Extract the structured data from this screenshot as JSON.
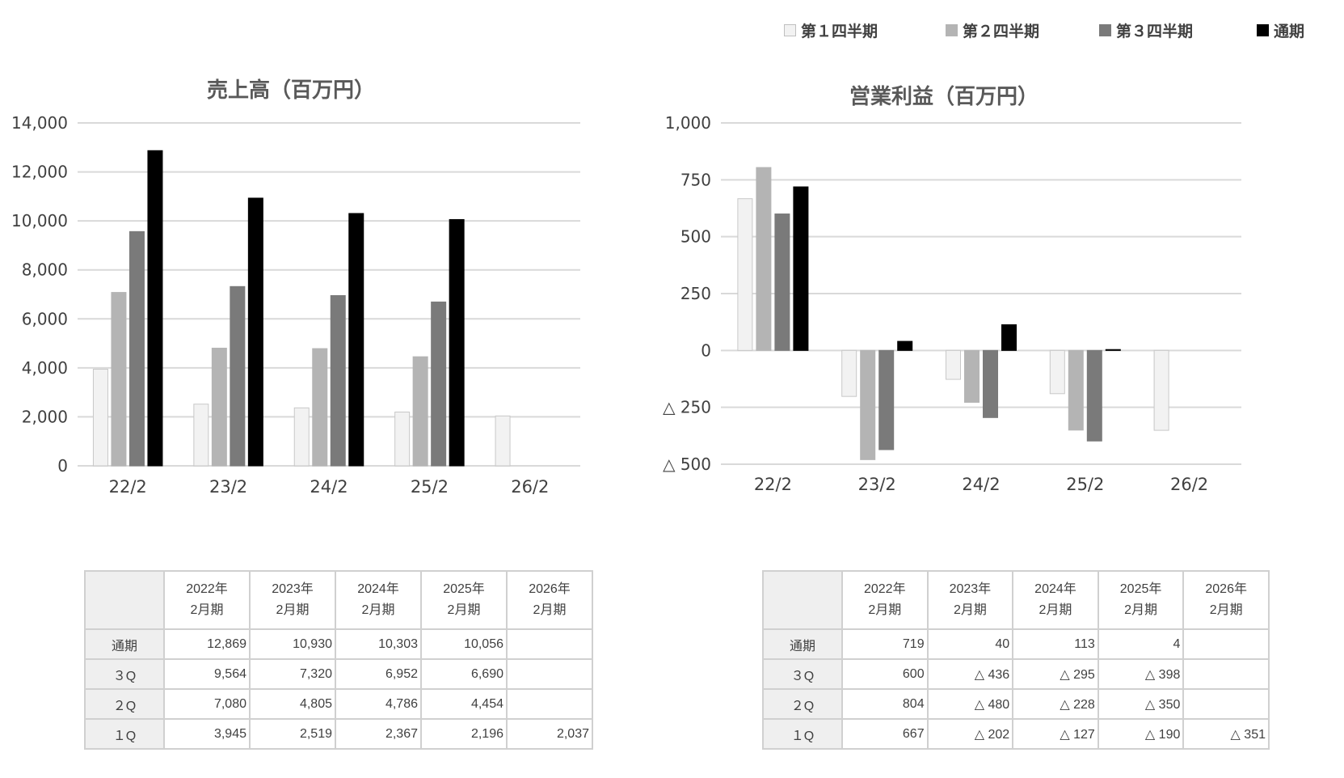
{
  "legend": [
    {
      "label": "第１四半期",
      "color": "#f2f2f2",
      "border": "#bfbfbf"
    },
    {
      "label": "第２四半期",
      "color": "#b4b4b4",
      "border": "#b4b4b4"
    },
    {
      "label": "第３四半期",
      "color": "#7a7a7a",
      "border": "#7a7a7a"
    },
    {
      "label": "通期",
      "color": "#000000",
      "border": "#000000"
    }
  ],
  "chart_data": [
    {
      "type": "bar",
      "title": "売上高（百万円）",
      "categories": [
        "22/2",
        "23/2",
        "24/2",
        "25/2",
        "26/2"
      ],
      "ylim": [
        0,
        14000
      ],
      "yticks": [
        {
          "v": 0,
          "label": "0"
        },
        {
          "v": 2000,
          "label": "2,000"
        },
        {
          "v": 4000,
          "label": "4,000"
        },
        {
          "v": 6000,
          "label": "6,000"
        },
        {
          "v": 8000,
          "label": "8,000"
        },
        {
          "v": 10000,
          "label": "10,000"
        },
        {
          "v": 12000,
          "label": "12,000"
        },
        {
          "v": 14000,
          "label": "14,000"
        }
      ],
      "grid": true,
      "series": [
        {
          "name": "第１四半期",
          "values": [
            3945,
            2519,
            2367,
            2196,
            2037
          ]
        },
        {
          "name": "第２四半期",
          "values": [
            7080,
            4805,
            4786,
            4454,
            null
          ]
        },
        {
          "name": "第３四半期",
          "values": [
            9564,
            7320,
            6952,
            6690,
            null
          ]
        },
        {
          "name": "通期",
          "values": [
            12869,
            10930,
            10303,
            10056,
            null
          ]
        }
      ]
    },
    {
      "type": "bar",
      "title": "営業利益（百万円）",
      "categories": [
        "22/2",
        "23/2",
        "24/2",
        "25/2",
        "26/2"
      ],
      "ylim": [
        -500,
        1000
      ],
      "yticks": [
        {
          "v": -500,
          "label": "△ 500"
        },
        {
          "v": -250,
          "label": "△ 250"
        },
        {
          "v": 0,
          "label": "0"
        },
        {
          "v": 250,
          "label": "250"
        },
        {
          "v": 500,
          "label": "500"
        },
        {
          "v": 750,
          "label": "750"
        },
        {
          "v": 1000,
          "label": "1,000"
        }
      ],
      "grid": true,
      "series": [
        {
          "name": "第１四半期",
          "values": [
            667,
            -202,
            -127,
            -190,
            -351
          ]
        },
        {
          "name": "第２四半期",
          "values": [
            804,
            -480,
            -228,
            -350,
            null
          ]
        },
        {
          "name": "第３四半期",
          "values": [
            600,
            -436,
            -295,
            -398,
            null
          ]
        },
        {
          "name": "通期",
          "values": [
            719,
            40,
            113,
            4,
            null
          ]
        }
      ]
    }
  ],
  "tables": [
    {
      "headers": [
        [
          "2022年",
          "2月期"
        ],
        [
          "2023年",
          "2月期"
        ],
        [
          "2024年",
          "2月期"
        ],
        [
          "2025年",
          "2月期"
        ],
        [
          "2026年",
          "2月期"
        ]
      ],
      "rows": [
        {
          "label": "通期",
          "values": [
            "12,869",
            "10,930",
            "10,303",
            "10,056",
            ""
          ]
        },
        {
          "label": "３Q",
          "values": [
            "9,564",
            "7,320",
            "6,952",
            "6,690",
            ""
          ]
        },
        {
          "label": "２Q",
          "values": [
            "7,080",
            "4,805",
            "4,786",
            "4,454",
            ""
          ]
        },
        {
          "label": "１Q",
          "values": [
            "3,945",
            "2,519",
            "2,367",
            "2,196",
            "2,037"
          ]
        }
      ]
    },
    {
      "headers": [
        [
          "2022年",
          "2月期"
        ],
        [
          "2023年",
          "2月期"
        ],
        [
          "2024年",
          "2月期"
        ],
        [
          "2025年",
          "2月期"
        ],
        [
          "2026年",
          "2月期"
        ]
      ],
      "rows": [
        {
          "label": "通期",
          "values": [
            "719",
            "40",
            "113",
            "4",
            ""
          ]
        },
        {
          "label": "３Q",
          "values": [
            "600",
            "△ 436",
            "△ 295",
            "△ 398",
            ""
          ]
        },
        {
          "label": "２Q",
          "values": [
            "804",
            "△ 480",
            "△ 228",
            "△ 350",
            ""
          ]
        },
        {
          "label": "１Q",
          "values": [
            "667",
            "△ 202",
            "△ 127",
            "△ 190",
            "△ 351"
          ]
        }
      ]
    }
  ]
}
